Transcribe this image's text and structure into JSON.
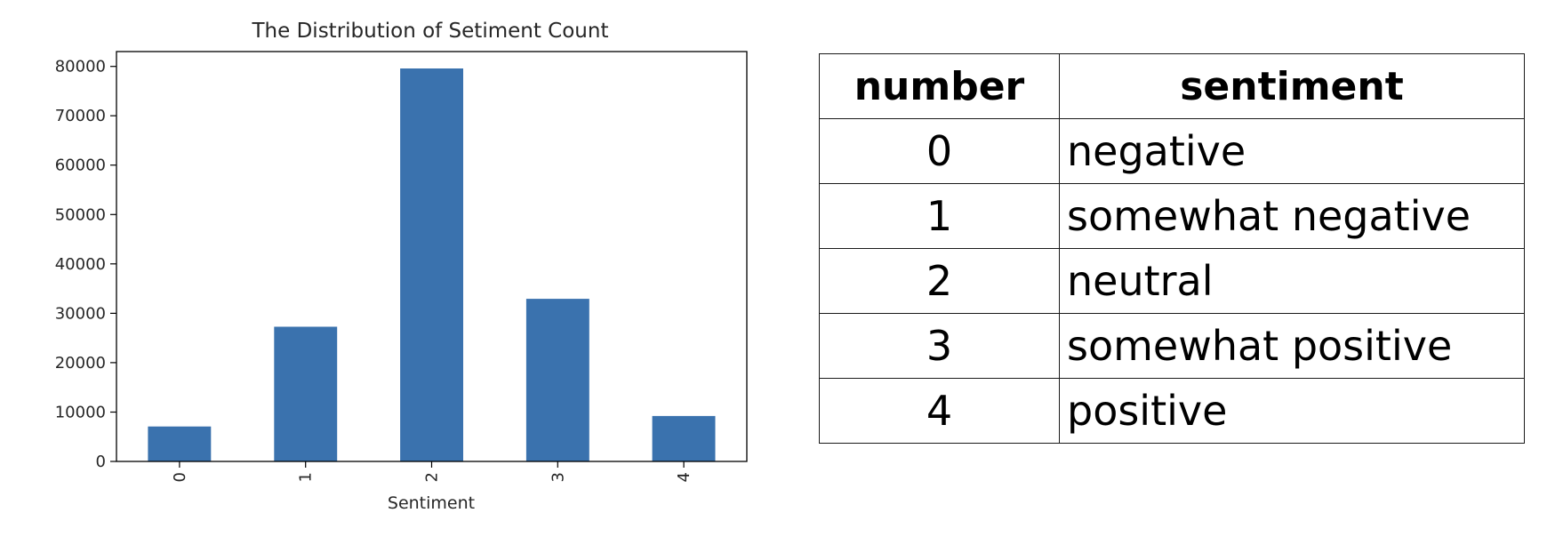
{
  "chart_data": {
    "type": "bar",
    "title": "The Distribution of Setiment Count",
    "xlabel": "Sentiment",
    "ylabel": "",
    "categories": [
      "0",
      "1",
      "2",
      "3",
      "4"
    ],
    "values": [
      7072,
      27273,
      79582,
      32927,
      9206
    ],
    "ylim": [
      0,
      83000
    ],
    "yticks": [
      0,
      10000,
      20000,
      30000,
      40000,
      50000,
      60000,
      70000,
      80000
    ],
    "ytick_labels": [
      "0",
      "10000",
      "20000",
      "30000",
      "40000",
      "50000",
      "60000",
      "70000",
      "80000"
    ],
    "bar_color": "#3a72ae",
    "x_tick_rotation": "vertical",
    "grid": false,
    "legend": "none"
  },
  "table": {
    "headers": [
      "number",
      "sentiment"
    ],
    "rows": [
      {
        "number": "0",
        "sentiment": "negative"
      },
      {
        "number": "1",
        "sentiment": "somewhat negative"
      },
      {
        "number": "2",
        "sentiment": "neutral"
      },
      {
        "number": "3",
        "sentiment": "somewhat positive"
      },
      {
        "number": "4",
        "sentiment": "positive"
      }
    ]
  }
}
